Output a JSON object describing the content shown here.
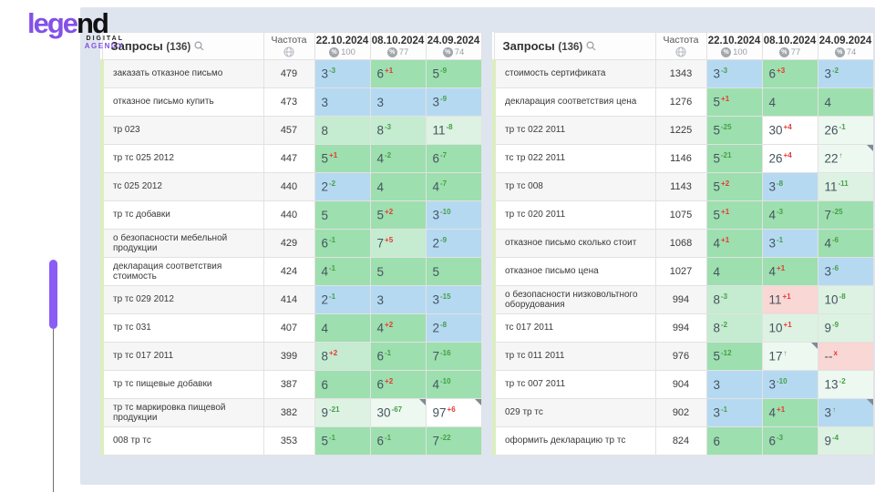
{
  "logo": {
    "word_left": "lege",
    "word_right": "nd",
    "sub1": "DIGITAL",
    "sub2": "AGENCY"
  },
  "colors": {
    "accent_purple": "#8b5cf6",
    "panel_bg": "#dfe5ee",
    "pos_top3_blue": "#b6d9f2",
    "pos_top10_green": "#9ddfae",
    "pos_light_green": "#c5ebd0",
    "pos_pale_green": "#ddf2e2",
    "pos_faint_green": "#edf8f0",
    "pos_dropped_pink": "#f8d7d4",
    "delta_up_green": "#43a047",
    "delta_down_red": "#e53935"
  },
  "icons": [
    "search-icon",
    "globe-icon",
    "percent-icon",
    "note-corner-icon"
  ],
  "tables": [
    {
      "title": "Запросы",
      "count": "(136)",
      "freq_header": "Частота",
      "date_columns": [
        {
          "date": "22.10.2024",
          "percent": "100"
        },
        {
          "date": "08.10.2024",
          "percent": "77"
        },
        {
          "date": "24.09.2024",
          "percent": "74"
        }
      ],
      "rows": [
        {
          "query": "заказать отказное письмо",
          "freq": "479",
          "cells": [
            {
              "v": "3",
              "d": "-3",
              "dc": "green",
              "bg": "blue"
            },
            {
              "v": "6",
              "d": "+1",
              "dc": "red",
              "bg": "green"
            },
            {
              "v": "5",
              "d": "-9",
              "dc": "green",
              "bg": "green"
            }
          ]
        },
        {
          "query": "отказное письмо купить",
          "freq": "473",
          "cells": [
            {
              "v": "3",
              "bg": "blue"
            },
            {
              "v": "3",
              "bg": "blue"
            },
            {
              "v": "3",
              "d": "-9",
              "dc": "green",
              "bg": "blue"
            }
          ]
        },
        {
          "query": "тр 023",
          "freq": "457",
          "cells": [
            {
              "v": "8",
              "bg": "lightgreen"
            },
            {
              "v": "8",
              "d": "-3",
              "dc": "green",
              "bg": "lightgreen"
            },
            {
              "v": "11",
              "d": "-8",
              "dc": "green",
              "bg": "palegreen"
            }
          ]
        },
        {
          "query": "тр тс 025 2012",
          "freq": "447",
          "cells": [
            {
              "v": "5",
              "d": "+1",
              "dc": "red",
              "bg": "green"
            },
            {
              "v": "4",
              "d": "-2",
              "dc": "green",
              "bg": "green"
            },
            {
              "v": "6",
              "d": "-7",
              "dc": "green",
              "bg": "green"
            }
          ]
        },
        {
          "query": "тс 025 2012",
          "freq": "440",
          "cells": [
            {
              "v": "2",
              "d": "-2",
              "dc": "green",
              "bg": "blue"
            },
            {
              "v": "4",
              "bg": "green"
            },
            {
              "v": "4",
              "d": "-7",
              "dc": "green",
              "bg": "green"
            }
          ]
        },
        {
          "query": "тр тс добавки",
          "freq": "440",
          "cells": [
            {
              "v": "5",
              "bg": "green"
            },
            {
              "v": "5",
              "d": "+2",
              "dc": "red",
              "bg": "green"
            },
            {
              "v": "3",
              "d": "-10",
              "dc": "green",
              "bg": "blue"
            }
          ]
        },
        {
          "query": "о безопасности мебельной продукции",
          "freq": "429",
          "cells": [
            {
              "v": "6",
              "d": "-1",
              "dc": "green",
              "bg": "green"
            },
            {
              "v": "7",
              "d": "+5",
              "dc": "red",
              "bg": "lightgreen"
            },
            {
              "v": "2",
              "d": "-9",
              "dc": "green",
              "bg": "blue"
            }
          ]
        },
        {
          "query": "декларация соответствия стоимость",
          "freq": "424",
          "cells": [
            {
              "v": "4",
              "d": "-1",
              "dc": "green",
              "bg": "green"
            },
            {
              "v": "5",
              "bg": "green"
            },
            {
              "v": "5",
              "bg": "green"
            }
          ]
        },
        {
          "query": "тр тс 029 2012",
          "freq": "414",
          "cells": [
            {
              "v": "2",
              "d": "-1",
              "dc": "green",
              "bg": "blue"
            },
            {
              "v": "3",
              "bg": "blue"
            },
            {
              "v": "3",
              "d": "-15",
              "dc": "green",
              "bg": "blue"
            }
          ]
        },
        {
          "query": "тр тс 031",
          "freq": "407",
          "cells": [
            {
              "v": "4",
              "bg": "green"
            },
            {
              "v": "4",
              "d": "+2",
              "dc": "red",
              "bg": "green"
            },
            {
              "v": "2",
              "d": "-8",
              "dc": "green",
              "bg": "blue"
            }
          ]
        },
        {
          "query": "тр тс 017 2011",
          "freq": "399",
          "cells": [
            {
              "v": "8",
              "d": "+2",
              "dc": "red",
              "bg": "lightgreen"
            },
            {
              "v": "6",
              "d": "-1",
              "dc": "green",
              "bg": "green"
            },
            {
              "v": "7",
              "d": "-16",
              "dc": "green",
              "bg": "green"
            }
          ]
        },
        {
          "query": "тр тс пищевые добавки",
          "freq": "387",
          "cells": [
            {
              "v": "6",
              "bg": "green"
            },
            {
              "v": "6",
              "d": "+2",
              "dc": "red",
              "bg": "green"
            },
            {
              "v": "4",
              "d": "-10",
              "dc": "green",
              "bg": "green"
            }
          ]
        },
        {
          "query": "тр тс маркировка пищевой продукции",
          "freq": "382",
          "cells": [
            {
              "v": "9",
              "d": "-21",
              "dc": "green",
              "bg": "palegreen"
            },
            {
              "v": "30",
              "d": "-67",
              "dc": "green",
              "bg": "faint",
              "corner": true
            },
            {
              "v": "97",
              "d": "+6",
              "dc": "red",
              "bg": "white",
              "corner": true
            }
          ]
        },
        {
          "query": "008 тр тс",
          "freq": "353",
          "cells": [
            {
              "v": "5",
              "d": "-1",
              "dc": "green",
              "bg": "green"
            },
            {
              "v": "6",
              "d": "-1",
              "dc": "green",
              "bg": "green"
            },
            {
              "v": "7",
              "d": "-22",
              "dc": "green",
              "bg": "green"
            }
          ]
        }
      ]
    },
    {
      "title": "Запросы",
      "count": "(136)",
      "freq_header": "Частота",
      "date_columns": [
        {
          "date": "22.10.2024",
          "percent": "100"
        },
        {
          "date": "08.10.2024",
          "percent": "77"
        },
        {
          "date": "24.09.2024",
          "percent": "74"
        }
      ],
      "rows": [
        {
          "query": "стоимость сертификата",
          "freq": "1343",
          "cells": [
            {
              "v": "3",
              "d": "-3",
              "dc": "green",
              "bg": "blue"
            },
            {
              "v": "6",
              "d": "+3",
              "dc": "red",
              "bg": "green"
            },
            {
              "v": "3",
              "d": "-2",
              "dc": "green",
              "bg": "blue"
            }
          ]
        },
        {
          "query": "декларация соответствия цена",
          "freq": "1276",
          "cells": [
            {
              "v": "5",
              "d": "+1",
              "dc": "red",
              "bg": "green"
            },
            {
              "v": "4",
              "bg": "green"
            },
            {
              "v": "4",
              "bg": "green"
            }
          ]
        },
        {
          "query": "тр тс 022 2011",
          "freq": "1225",
          "cells": [
            {
              "v": "5",
              "d": "-25",
              "dc": "green",
              "bg": "green"
            },
            {
              "v": "30",
              "d": "+4",
              "dc": "red",
              "bg": "white"
            },
            {
              "v": "26",
              "d": "-1",
              "dc": "green",
              "bg": "faint"
            }
          ]
        },
        {
          "query": "тс тр 022 2011",
          "freq": "1146",
          "cells": [
            {
              "v": "5",
              "d": "-21",
              "dc": "green",
              "bg": "green"
            },
            {
              "v": "26",
              "d": "+4",
              "dc": "red",
              "bg": "white"
            },
            {
              "v": "22",
              "d": "↑",
              "dc": "green",
              "bg": "faint",
              "corner": true
            }
          ]
        },
        {
          "query": "тр тс 008",
          "freq": "1143",
          "cells": [
            {
              "v": "5",
              "d": "+2",
              "dc": "red",
              "bg": "green"
            },
            {
              "v": "3",
              "d": "-8",
              "dc": "green",
              "bg": "blue"
            },
            {
              "v": "11",
              "d": "-11",
              "dc": "green",
              "bg": "palegreen"
            }
          ]
        },
        {
          "query": "тр тс 020 2011",
          "freq": "1075",
          "cells": [
            {
              "v": "5",
              "d": "+1",
              "dc": "red",
              "bg": "green"
            },
            {
              "v": "4",
              "d": "-3",
              "dc": "green",
              "bg": "green"
            },
            {
              "v": "7",
              "d": "-25",
              "dc": "green",
              "bg": "green"
            }
          ]
        },
        {
          "query": "отказное письмо сколько стоит",
          "freq": "1068",
          "cells": [
            {
              "v": "4",
              "d": "+1",
              "dc": "red",
              "bg": "green"
            },
            {
              "v": "3",
              "d": "-1",
              "dc": "green",
              "bg": "blue"
            },
            {
              "v": "4",
              "d": "-6",
              "dc": "green",
              "bg": "green"
            }
          ]
        },
        {
          "query": "отказное письмо цена",
          "freq": "1027",
          "cells": [
            {
              "v": "4",
              "bg": "green"
            },
            {
              "v": "4",
              "d": "+1",
              "dc": "red",
              "bg": "green"
            },
            {
              "v": "3",
              "d": "-6",
              "dc": "green",
              "bg": "blue"
            }
          ]
        },
        {
          "query": "о безопасности низковольтного оборудования",
          "freq": "994",
          "cells": [
            {
              "v": "8",
              "d": "-3",
              "dc": "green",
              "bg": "lightgreen"
            },
            {
              "v": "11",
              "d": "+1",
              "dc": "red",
              "bg": "pink"
            },
            {
              "v": "10",
              "d": "-8",
              "dc": "green",
              "bg": "palegreen"
            }
          ]
        },
        {
          "query": "тс 017 2011",
          "freq": "994",
          "cells": [
            {
              "v": "8",
              "d": "-2",
              "dc": "green",
              "bg": "lightgreen"
            },
            {
              "v": "10",
              "d": "+1",
              "dc": "red",
              "bg": "palegreen"
            },
            {
              "v": "9",
              "d": "-9",
              "dc": "green",
              "bg": "palegreen"
            }
          ]
        },
        {
          "query": "тр тс 011 2011",
          "freq": "976",
          "cells": [
            {
              "v": "5",
              "d": "-12",
              "dc": "green",
              "bg": "green"
            },
            {
              "v": "17",
              "d": "↑",
              "dc": "green",
              "bg": "faint",
              "corner": true
            },
            {
              "v": "--",
              "d": "x",
              "dc": "red",
              "bg": "pink"
            }
          ]
        },
        {
          "query": "тр тс 007 2011",
          "freq": "904",
          "cells": [
            {
              "v": "3",
              "bg": "blue"
            },
            {
              "v": "3",
              "d": "-10",
              "dc": "green",
              "bg": "blue"
            },
            {
              "v": "13",
              "d": "-2",
              "dc": "green",
              "bg": "faint"
            }
          ]
        },
        {
          "query": "029 тр тс",
          "freq": "902",
          "cells": [
            {
              "v": "3",
              "d": "-1",
              "dc": "green",
              "bg": "blue"
            },
            {
              "v": "4",
              "d": "+1",
              "dc": "red",
              "bg": "green"
            },
            {
              "v": "3",
              "d": "↑",
              "dc": "green",
              "bg": "blue",
              "corner": true
            }
          ]
        },
        {
          "query": "оформить декларацию тр тс",
          "freq": "824",
          "cells": [
            {
              "v": "6",
              "bg": "green"
            },
            {
              "v": "6",
              "d": "-3",
              "dc": "green",
              "bg": "green"
            },
            {
              "v": "9",
              "d": "-4",
              "dc": "green",
              "bg": "palegreen"
            }
          ]
        }
      ]
    }
  ]
}
